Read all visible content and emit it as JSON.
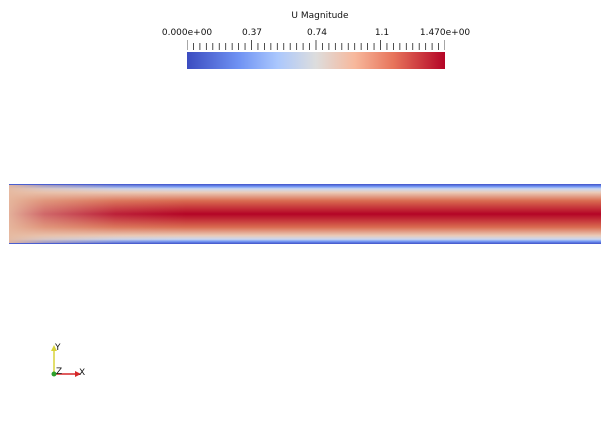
{
  "legend": {
    "title": "U Magnitude",
    "ticks": [
      "0.000e+00",
      "0.37",
      "0.74",
      "1.1",
      "1.470e+00"
    ]
  },
  "axes": {
    "x_label": "X",
    "y_label": "Y",
    "z_label": "Z"
  },
  "colors": {
    "colormap_low": "#3b4cc0",
    "colormap_mid": "#dddddd",
    "colormap_high": "#b40426",
    "axis_x": "#d62728",
    "axis_y": "#d8d33a",
    "axis_z": "#2ca02c"
  }
}
